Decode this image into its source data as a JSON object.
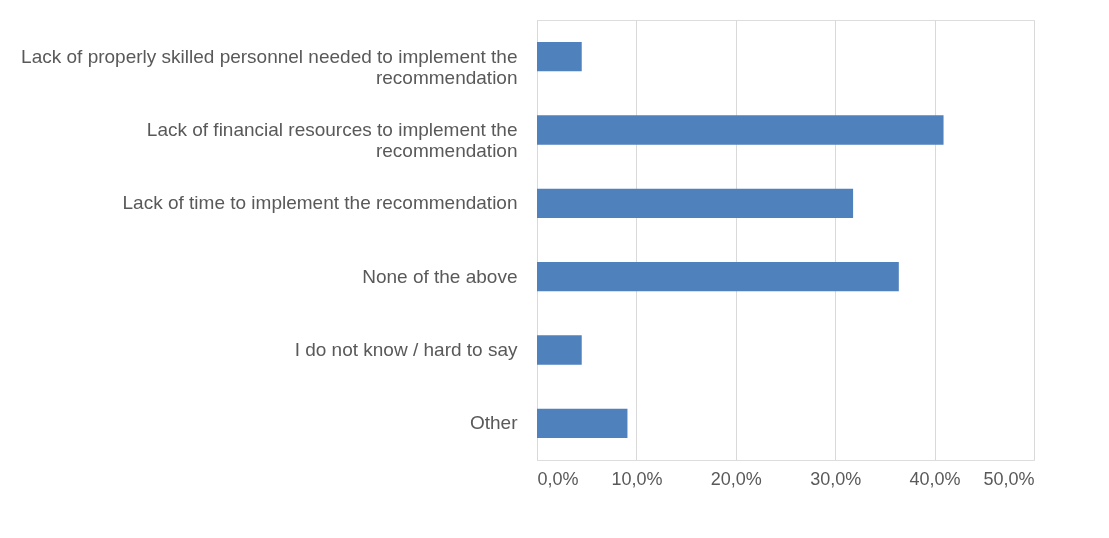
{
  "chart_data": {
    "type": "bar",
    "orientation": "horizontal",
    "categories": [
      "Lack of properly skilled personnel needed to implement the recommendation",
      "Lack of financial resources to implement the recommendation",
      "Lack of time to implement the recommendation",
      "None of the above",
      "I do not know / hard to say",
      "Other"
    ],
    "values": [
      4.5,
      40.9,
      31.8,
      36.4,
      4.5,
      9.1
    ],
    "color": "#4f81bd",
    "xlim": [
      0,
      50
    ],
    "xticks": [
      {
        "value": 0,
        "label": "0,0%"
      },
      {
        "value": 10,
        "label": "10,0%"
      },
      {
        "value": 20,
        "label": "20,0%"
      },
      {
        "value": 30,
        "label": "30,0%"
      },
      {
        "value": 40,
        "label": "40,0%"
      },
      {
        "value": 50,
        "label": "50,0%"
      }
    ],
    "grid": "x"
  }
}
